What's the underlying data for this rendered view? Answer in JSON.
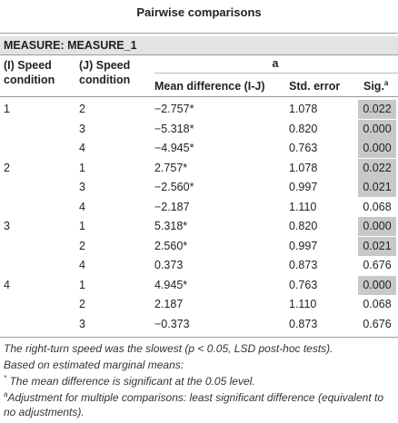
{
  "title": "Pairwise comparisons",
  "measure": "MEASURE: MEASURE_1",
  "headers": {
    "i": [
      "(I) Speed",
      "condition"
    ],
    "j": [
      "(J) Speed",
      "condition"
    ],
    "a_mark": "a",
    "mean_diff": "Mean difference (I-J)",
    "std_error": "Std. error",
    "sig": "Sig.",
    "sig_sup": "a"
  },
  "rows": [
    {
      "i": "1",
      "j": "2",
      "md": "−2.757*",
      "se": "1.078",
      "sig": "0.022",
      "significant": true
    },
    {
      "i": "",
      "j": "3",
      "md": "−5.318*",
      "se": "0.820",
      "sig": "0.000",
      "significant": true
    },
    {
      "i": "",
      "j": "4",
      "md": "−4.945*",
      "se": "0.763",
      "sig": "0.000",
      "significant": true
    },
    {
      "i": "2",
      "j": "1",
      "md": "2.757*",
      "se": "1.078",
      "sig": "0.022",
      "significant": true
    },
    {
      "i": "",
      "j": "3",
      "md": "−2.560*",
      "se": "0.997",
      "sig": "0.021",
      "significant": true
    },
    {
      "i": "",
      "j": "4",
      "md": "−2.187",
      "se": "1.110",
      "sig": "0.068",
      "significant": false
    },
    {
      "i": "3",
      "j": "1",
      "md": "5.318*",
      "se": "0.820",
      "sig": "0.000",
      "significant": true
    },
    {
      "i": "",
      "j": "2",
      "md": "2.560*",
      "se": "0.997",
      "sig": "0.021",
      "significant": true
    },
    {
      "i": "",
      "j": "4",
      "md": "0.373",
      "se": "0.873",
      "sig": "0.676",
      "significant": false
    },
    {
      "i": "4",
      "j": "1",
      "md": "4.945*",
      "se": "0.763",
      "sig": "0.000",
      "significant": true
    },
    {
      "i": "",
      "j": "2",
      "md": "2.187",
      "se": "1.110",
      "sig": "0.068",
      "significant": false
    },
    {
      "i": "",
      "j": "3",
      "md": "−0.373",
      "se": "0.873",
      "sig": "0.676",
      "significant": false
    }
  ],
  "footnotes": {
    "note1": "The right-turn speed was the slowest (p < 0.05, LSD post-hoc tests).",
    "note2": "Based on estimated marginal means:",
    "note3_mark": "*",
    "note3": "The mean difference is significant at the 0.05 level.",
    "note4_mark": "a",
    "note4": "Adjustment for multiple comparisons: least significant difference (equivalent to no adjustments)."
  },
  "colors": {
    "highlight": "#c8c8c8",
    "measure_band": "#e3e3e3"
  }
}
